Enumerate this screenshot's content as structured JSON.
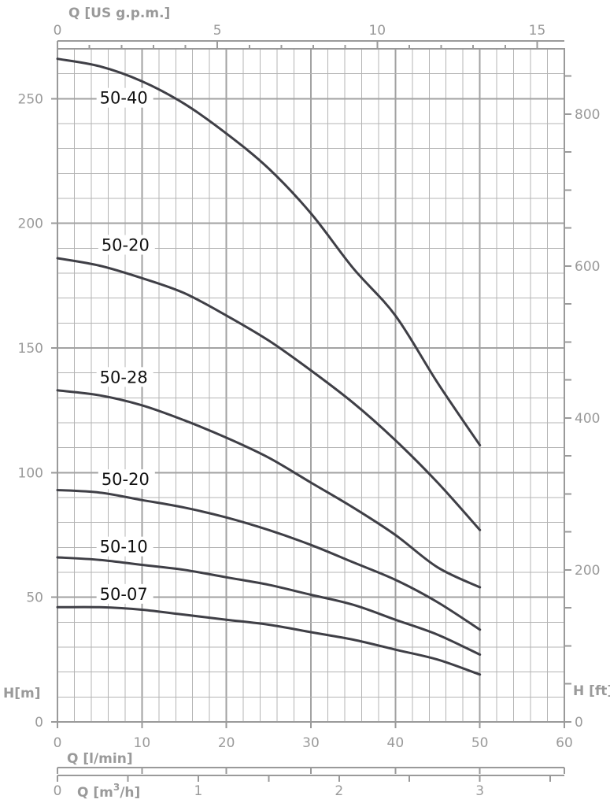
{
  "chart_data": {
    "type": "line",
    "title": "",
    "xlabel": "Q [l/min]",
    "xlabel_top": "Q [US g.p.m.]",
    "xlabel_bottom_prefix": "Q [m",
    "xlabel_bottom_sup": "3",
    "xlabel_bottom_suffix": "/h]",
    "ylabel": "H[m]",
    "ylabel_right": "H [ft]",
    "xlim": [
      0,
      60
    ],
    "ylim": [
      0,
      270
    ],
    "grid": true,
    "x_ticks": [
      "0",
      "10",
      "20",
      "30",
      "40",
      "50",
      "60"
    ],
    "y_ticks": [
      "0",
      "50",
      "100",
      "150",
      "200",
      "250"
    ],
    "x_top_ticks": [
      "0",
      "5",
      "10",
      "15"
    ],
    "y_right_ticks": [
      "0",
      "200",
      "400",
      "600",
      "800"
    ],
    "x_m3h_ticks": [
      "0",
      "1",
      "2",
      "3"
    ],
    "series": [
      {
        "name": "50-40",
        "x": [
          0,
          5,
          10,
          15,
          20,
          25,
          30,
          35,
          40,
          45,
          50
        ],
        "y": [
          266,
          263,
          257,
          248,
          236,
          222,
          204,
          182,
          163,
          136,
          111
        ]
      },
      {
        "name": "50-20",
        "x": [
          0,
          5,
          10,
          15,
          20,
          25,
          30,
          35,
          40,
          45,
          50
        ],
        "y": [
          186,
          183,
          178,
          172,
          163,
          153,
          141,
          128,
          113,
          96,
          77
        ]
      },
      {
        "name": "50-28",
        "x": [
          0,
          5,
          10,
          15,
          20,
          25,
          30,
          35,
          40,
          45,
          50
        ],
        "y": [
          133,
          131,
          127,
          121,
          114,
          106,
          96,
          86,
          75,
          62,
          54
        ]
      },
      {
        "name": "50-20",
        "x": [
          0,
          5,
          10,
          15,
          20,
          25,
          30,
          35,
          40,
          45,
          50
        ],
        "y": [
          93,
          92,
          89,
          86,
          82,
          77,
          71,
          64,
          57,
          48,
          37
        ]
      },
      {
        "name": "50-10",
        "x": [
          0,
          5,
          10,
          15,
          20,
          25,
          30,
          35,
          40,
          45,
          50
        ],
        "y": [
          66,
          65,
          63,
          61,
          58,
          55,
          51,
          47,
          41,
          35,
          27
        ]
      },
      {
        "name": "50-07",
        "x": [
          0,
          5,
          10,
          15,
          20,
          25,
          30,
          35,
          40,
          45,
          50
        ],
        "y": [
          46,
          46,
          45,
          43,
          41,
          39,
          36,
          33,
          29,
          25,
          19
        ]
      }
    ]
  }
}
